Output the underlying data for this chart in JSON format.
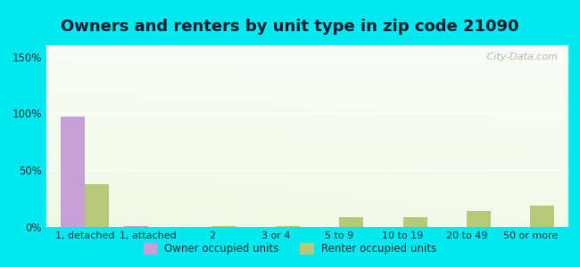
{
  "title": "Owners and renters by unit type in zip code 21090",
  "categories": [
    "1, detached",
    "1, attached",
    "2",
    "3 or 4",
    "5 to 9",
    "10 to 19",
    "20 to 49",
    "50 or more"
  ],
  "owner_values": [
    97,
    1,
    0,
    0,
    0,
    0,
    0,
    0
  ],
  "renter_values": [
    38,
    0,
    1,
    1,
    9,
    9,
    14,
    19
  ],
  "owner_color": "#c8a0d8",
  "renter_color": "#b8c878",
  "ylim": [
    0,
    160
  ],
  "yticks": [
    0,
    50,
    100,
    150
  ],
  "ytick_labels": [
    "0%",
    "50%",
    "100%",
    "150%"
  ],
  "outer_color": "#00e8f0",
  "title_fontsize": 13,
  "bar_width": 0.38,
  "legend_labels": [
    "Owner occupied units",
    "Renter occupied units"
  ],
  "watermark": " City-Data.com"
}
